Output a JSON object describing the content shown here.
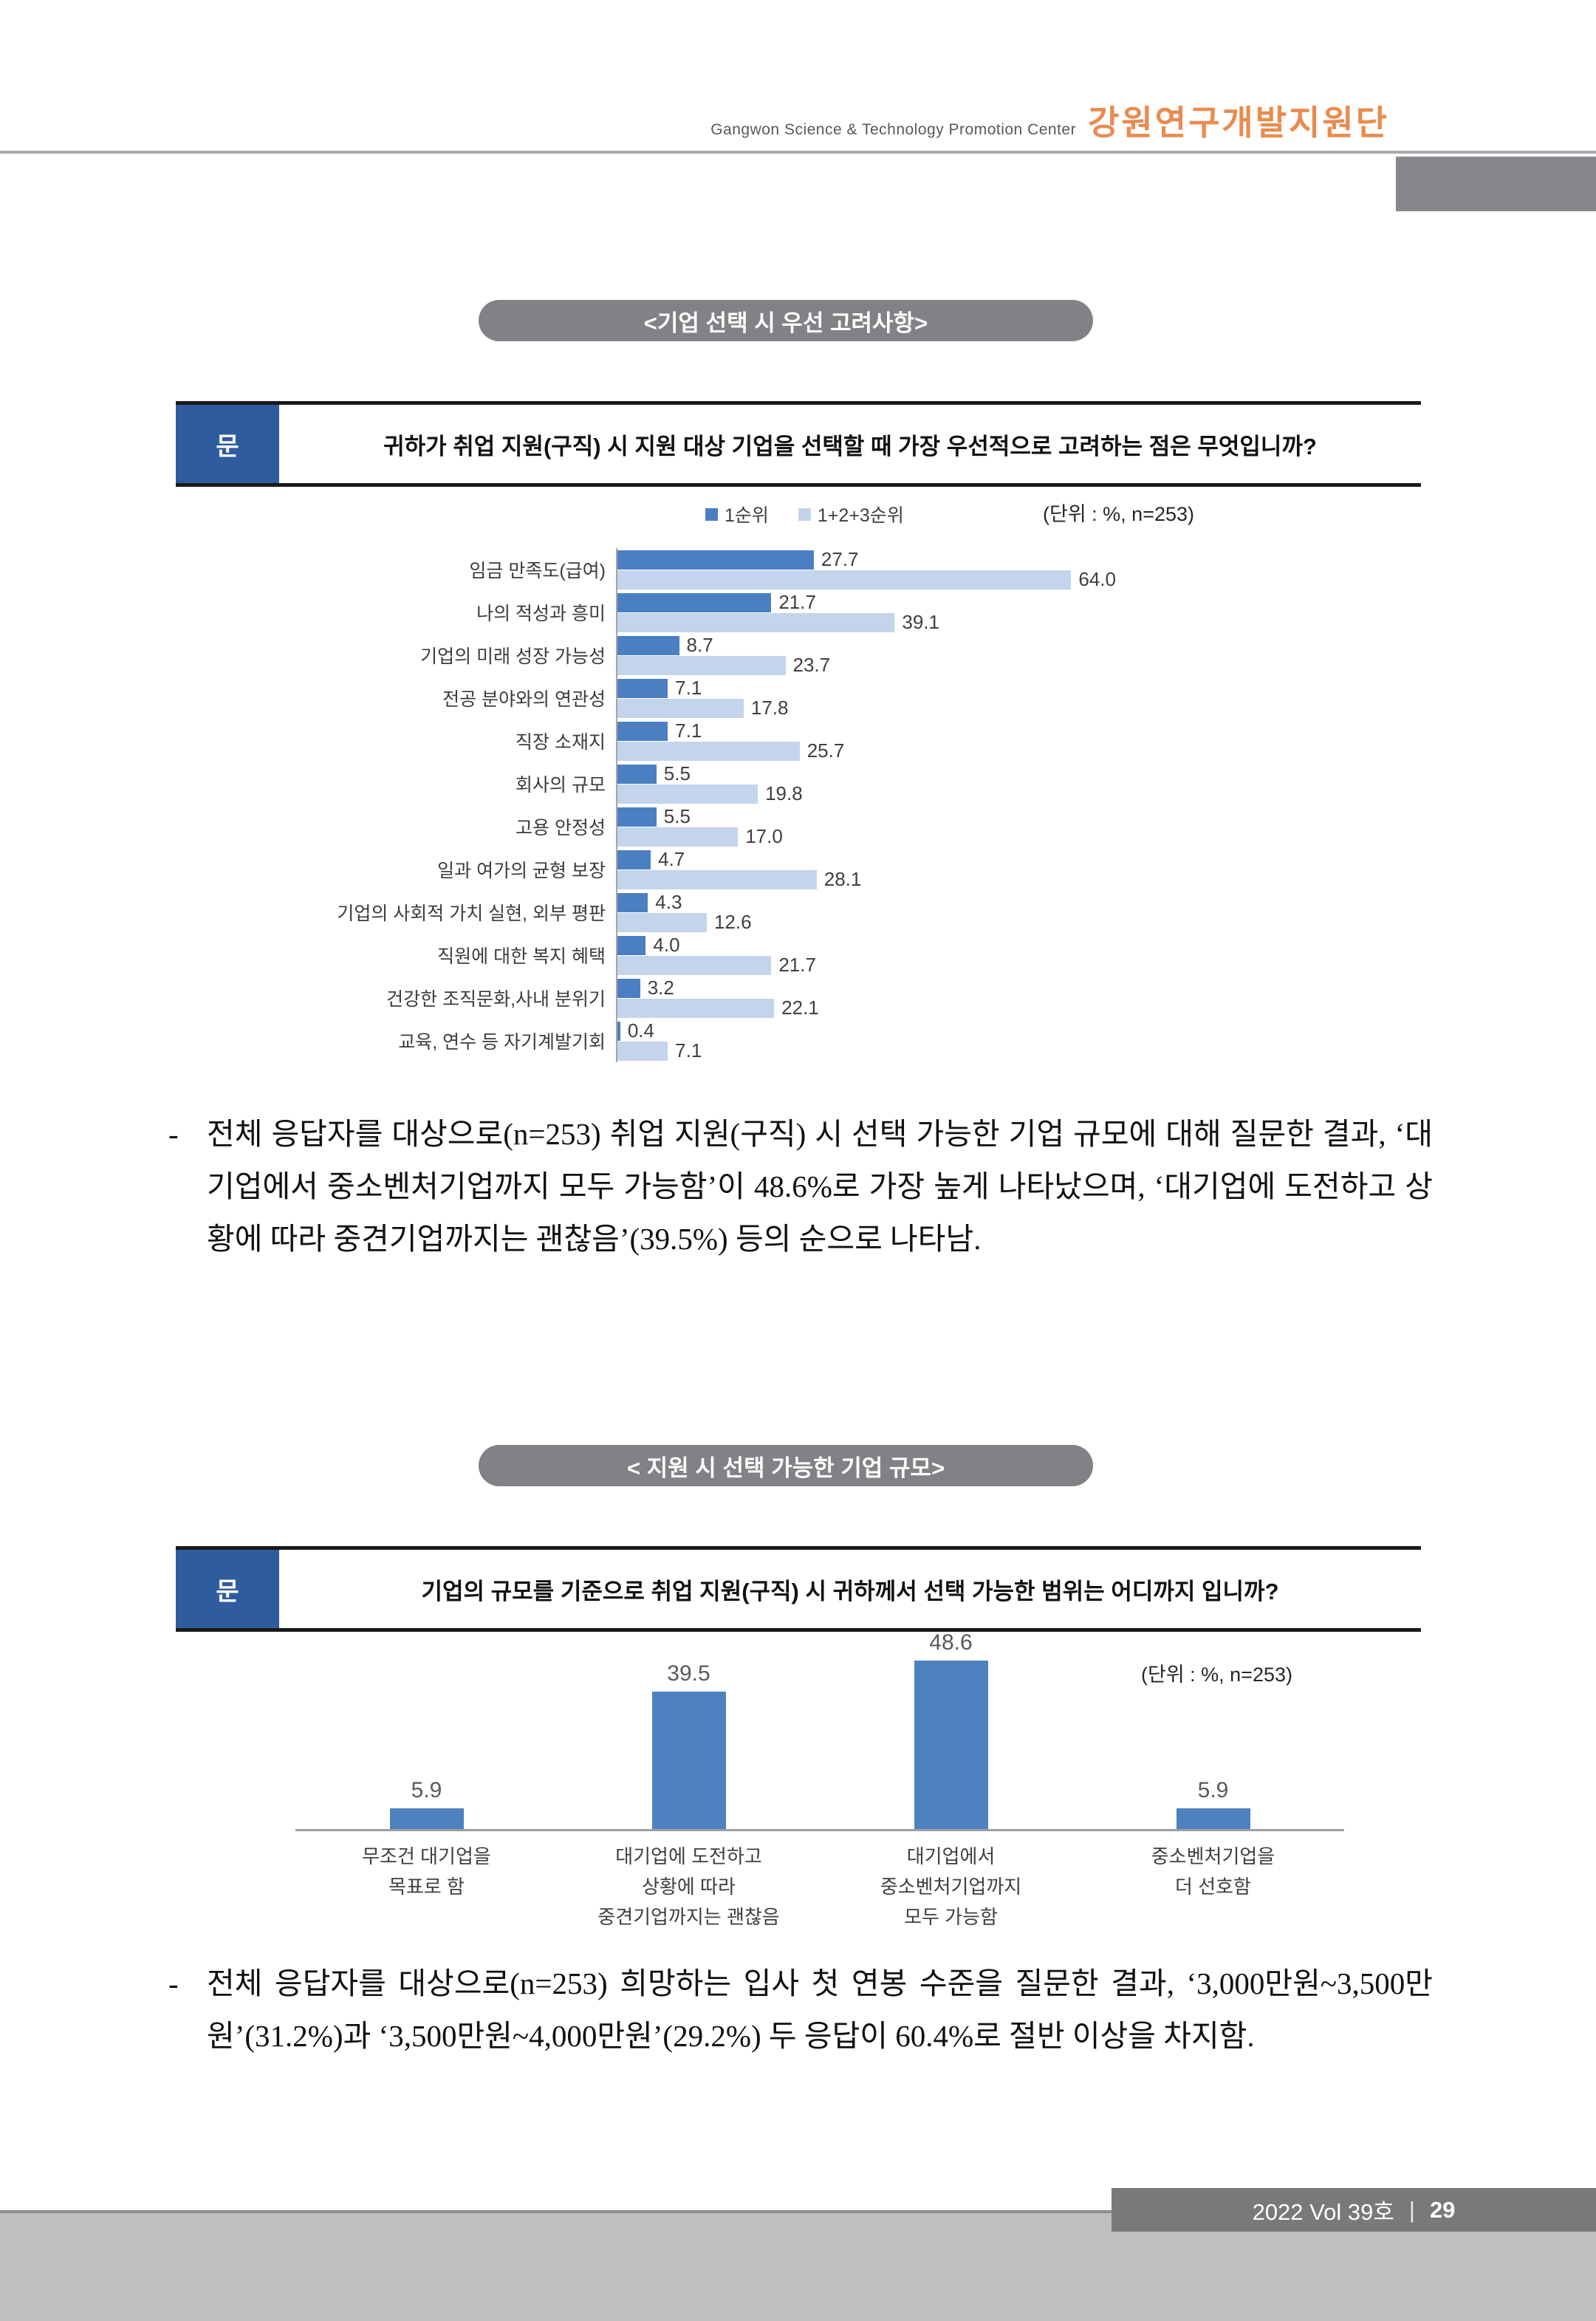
{
  "page": {
    "header": {
      "subtitle_en": "Gangwon Science & Technology Promotion Center",
      "title_ko": "강원연구개발지원단"
    },
    "footer": {
      "volume": "2022 Vol 39호",
      "separator": "|",
      "page_number": "29"
    }
  },
  "section1": {
    "title_pill": "<기업 선택 시 우선 고려사항>",
    "question_label": "문",
    "question_text": "귀하가 취업 지원(구직) 시 지원 대상 기업을 선택할 때 가장 우선적으로 고려하는 점은 무엇입니까?"
  },
  "section2": {
    "title_pill": "< 지원 시 선택 가능한 기업 규모>",
    "question_label": "문",
    "question_text": "기업의 규모를 기준으로 취업 지원(구직) 시 귀하께서 선택 가능한 범위는 어디까지 입니까?"
  },
  "paragraphs": [
    {
      "bullet": "-",
      "text": "전체 응답자를 대상으로(n=253) 취업 지원(구직) 시 선택 가능한 기업 규모에 대해 질문한 결과, ‘대기업에서 중소벤처기업까지 모두 가능함’이 48.6%로 가장 높게 나타났으며, ‘대기업에 도전하고 상황에 따라 중견기업까지는 괜찮음’(39.5%) 등의 순으로 나타남."
    },
    {
      "bullet": "-",
      "text": "전체 응답자를 대상으로(n=253) 희망하는 입사 첫 연봉 수준을 질문한 결과, ‘3,000만원~3,500만원’(31.2%)과 ‘3,500만원~4,000만원’(29.2%) 두 응답이 60.4%로 절반 이상을 차지함."
    }
  ],
  "chart_data": [
    {
      "type": "bar",
      "orientation": "horizontal",
      "title": "기업 선택 시 우선 고려사항",
      "unit_label": "(단위 : %, n=253)",
      "legend_position": "top",
      "value_labels": true,
      "xlim": [
        0,
        70
      ],
      "categories": [
        "임금 만족도(급여)",
        "나의 적성과 흥미",
        "기업의 미래 성장 가능성",
        "전공 분야와의 연관성",
        "직장 소재지",
        "회사의 규모",
        "고용 안정성",
        "일과 여가의 균형 보장",
        "기업의 사회적 가치 실현, 외부 평판",
        "직원에 대한 복지 혜택",
        "건강한 조직문화,사내 분위기",
        "교육, 연수 등 자기계발기회"
      ],
      "series": [
        {
          "name": "1순위",
          "color": "#4a80c2",
          "values": [
            27.7,
            21.7,
            8.7,
            7.1,
            7.1,
            5.5,
            5.5,
            4.7,
            4.3,
            4.0,
            3.2,
            0.4
          ]
        },
        {
          "name": "1+2+3순위",
          "color": "#c3d4ec",
          "values": [
            64.0,
            39.1,
            23.7,
            17.8,
            25.7,
            19.8,
            17.0,
            28.1,
            12.6,
            21.7,
            22.1,
            7.1
          ]
        }
      ]
    },
    {
      "type": "bar",
      "orientation": "vertical",
      "title": "지원 시 선택 가능한 기업 규모",
      "unit_label": "(단위 : %, n=253)",
      "value_labels": true,
      "ylim": [
        0,
        55
      ],
      "bar_color": "#4d82be",
      "categories": [
        "무조건 대기업을 목표로 함",
        "대기업에 도전하고 상황에 따라 중견기업까지는 괜찮음",
        "대기업에서 중소벤처기업까지 모두 가능함",
        "중소벤처기업을 더 선호함"
      ],
      "category_lines": [
        [
          "무조건 대기업을",
          "목표로 함"
        ],
        [
          "대기업에 도전하고",
          "상황에 따라",
          "중견기업까지는 괜찮음"
        ],
        [
          "대기업에서",
          "중소벤처기업까지",
          "모두 가능함"
        ],
        [
          "중소벤처기업을",
          "더 선호함"
        ]
      ],
      "values": [
        5.9,
        39.5,
        48.6,
        5.9
      ]
    }
  ],
  "colors": {
    "accent_orange": "#e98b4f",
    "question_blue": "#2e5c9e",
    "pill_gray": "#808285",
    "series1_blue": "#4a80c2",
    "series2_lightblue": "#c3d4ec",
    "footer_bar_gray": "#77797b",
    "footer_strip_gray": "#bdbfc1"
  }
}
